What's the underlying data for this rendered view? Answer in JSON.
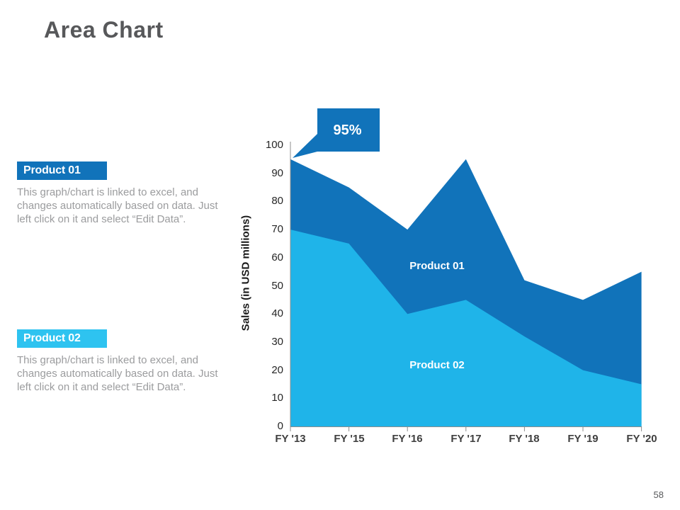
{
  "slide": {
    "title": "Area Chart",
    "page_number": "58"
  },
  "notes": {
    "blocks": [
      {
        "label": "Product 01",
        "color": "#1173BA",
        "body": "This graph/chart is linked to excel, and changes automatically based on data. Just left click on it and select “Edit Data”."
      },
      {
        "label": "Product 02",
        "color": "#2EC3F0",
        "body": "This graph/chart is linked to excel, and changes automatically based on data. Just left click on it and select “Edit Data”."
      }
    ]
  },
  "chart_data": {
    "type": "area",
    "stacked": false,
    "categories": [
      "FY '13",
      "FY '15",
      "FY '16",
      "FY '17",
      "FY '18",
      "FY '19",
      "FY '20"
    ],
    "series": [
      {
        "name": "Product 01",
        "color": "#1173BA",
        "values": [
          95,
          85,
          70,
          95,
          52,
          45,
          55
        ]
      },
      {
        "name": "Product 02",
        "color": "#1FB4E9",
        "values": [
          70,
          65,
          40,
          45,
          32,
          20,
          15
        ]
      }
    ],
    "ylabel": "Sales (in USD millions)",
    "ylim": [
      0,
      100
    ],
    "y_ticks": [
      0,
      10,
      20,
      30,
      40,
      50,
      60,
      70,
      80,
      90,
      100
    ],
    "grid": false,
    "legend": "inline-labels",
    "axis_color": "#8C8C8C",
    "annotation": {
      "text": "95%",
      "target_category": "FY '13",
      "target_series": "Product 01",
      "target_value": 95
    }
  }
}
